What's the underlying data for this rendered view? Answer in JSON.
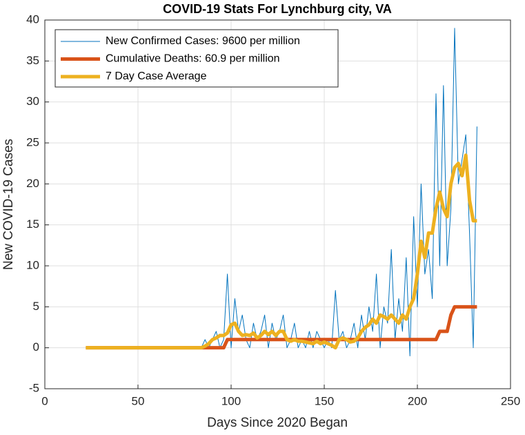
{
  "chart_data": {
    "type": "line",
    "title": "COVID-19 Stats For Lynchburg city, VA",
    "x_label": "Days Since 2020 Began",
    "y_label": "New COVID-19 Cases",
    "xlim": [
      0,
      250
    ],
    "xticks": [
      0,
      50,
      100,
      150,
      200,
      250
    ],
    "ylim": [
      -5,
      40
    ],
    "yticks": [
      -5,
      0,
      5,
      10,
      15,
      20,
      25,
      30,
      35,
      40
    ],
    "grid": true,
    "legend": "upper left",
    "x": [
      22,
      24,
      26,
      28,
      30,
      32,
      34,
      36,
      38,
      40,
      42,
      44,
      46,
      48,
      50,
      52,
      54,
      56,
      58,
      60,
      62,
      64,
      66,
      68,
      70,
      72,
      74,
      76,
      78,
      80,
      82,
      84,
      86,
      88,
      90,
      92,
      94,
      96,
      98,
      100,
      102,
      104,
      106,
      108,
      110,
      112,
      114,
      116,
      118,
      120,
      122,
      124,
      126,
      128,
      130,
      132,
      134,
      136,
      138,
      140,
      142,
      144,
      146,
      148,
      150,
      152,
      154,
      156,
      158,
      160,
      162,
      164,
      166,
      168,
      170,
      172,
      174,
      176,
      178,
      180,
      182,
      184,
      186,
      188,
      190,
      192,
      194,
      196,
      198,
      200,
      202,
      204,
      206,
      208,
      210,
      212,
      214,
      216,
      218,
      220,
      222,
      224,
      226,
      228,
      230,
      232
    ],
    "series": [
      {
        "name": "New Confirmed Cases: 9600 per million",
        "color": "#0072BD",
        "width": 1,
        "values": [
          0,
          0,
          0,
          0,
          0,
          0,
          0,
          0,
          0,
          0,
          0,
          0,
          0,
          0,
          0,
          0,
          0,
          0,
          0,
          0,
          0,
          0,
          0,
          0,
          0,
          0,
          0,
          0,
          0,
          0,
          0,
          0,
          1,
          0,
          1,
          2,
          0,
          1,
          9,
          0,
          6,
          2,
          4,
          1,
          0,
          3,
          1,
          2,
          4,
          0,
          3,
          1,
          2,
          4,
          0,
          1,
          3,
          0,
          1,
          0,
          2,
          0,
          2,
          1,
          0,
          1,
          0,
          7,
          1,
          2,
          0,
          1,
          3,
          0,
          4,
          1,
          5,
          2,
          9,
          0,
          5,
          3,
          12,
          1,
          6,
          2,
          11,
          -1,
          16,
          5,
          20,
          9,
          12,
          6,
          31,
          10,
          32,
          10,
          17,
          39,
          20,
          23,
          26,
          14,
          0,
          27
        ]
      },
      {
        "name": "Cumulative Deaths: 60.9 per million",
        "color": "#D95319",
        "width": 5,
        "values": [
          0,
          0,
          0,
          0,
          0,
          0,
          0,
          0,
          0,
          0,
          0,
          0,
          0,
          0,
          0,
          0,
          0,
          0,
          0,
          0,
          0,
          0,
          0,
          0,
          0,
          0,
          0,
          0,
          0,
          0,
          0,
          0,
          0,
          0,
          0,
          0,
          0,
          0,
          1,
          1,
          1,
          1,
          1,
          1,
          1,
          1,
          1,
          1,
          1,
          1,
          1,
          1,
          1,
          1,
          1,
          1,
          1,
          1,
          1,
          1,
          1,
          1,
          1,
          1,
          1,
          1,
          1,
          1,
          1,
          1,
          1,
          1,
          1,
          1,
          1,
          1,
          1,
          1,
          1,
          1,
          1,
          1,
          1,
          1,
          1,
          1,
          1,
          1,
          1,
          1,
          1,
          1,
          1,
          1,
          1,
          2,
          2,
          2,
          4,
          5,
          5,
          5,
          5,
          5,
          5,
          5
        ]
      },
      {
        "name": "7 Day Case Average",
        "color": "#EDB120",
        "width": 5,
        "values": [
          0,
          0,
          0,
          0,
          0,
          0,
          0,
          0,
          0,
          0,
          0,
          0,
          0,
          0,
          0,
          0,
          0,
          0,
          0,
          0,
          0,
          0,
          0,
          0,
          0,
          0,
          0,
          0,
          0,
          0,
          0,
          0,
          0.2,
          0.5,
          1,
          1.2,
          1.5,
          1.5,
          1.8,
          2.8,
          3,
          2,
          1.5,
          1.6,
          1.5,
          1.8,
          1.2,
          1.5,
          2,
          1.6,
          2,
          1.5,
          2,
          2,
          1,
          0.8,
          1,
          0.8,
          0.8,
          0.7,
          0.6,
          0.5,
          0.8,
          0.5,
          0.7,
          0.5,
          0.3,
          0,
          1,
          1.2,
          1,
          0.7,
          0.8,
          1.2,
          2,
          2.5,
          2.8,
          3.5,
          3,
          4,
          3.8,
          3.5,
          4,
          3.5,
          3,
          4,
          3.5,
          5,
          6,
          9,
          13,
          11,
          14,
          14,
          17,
          19,
          17,
          16,
          20,
          22,
          22.5,
          21,
          23.5,
          18,
          15.5,
          15.5
        ]
      }
    ]
  }
}
